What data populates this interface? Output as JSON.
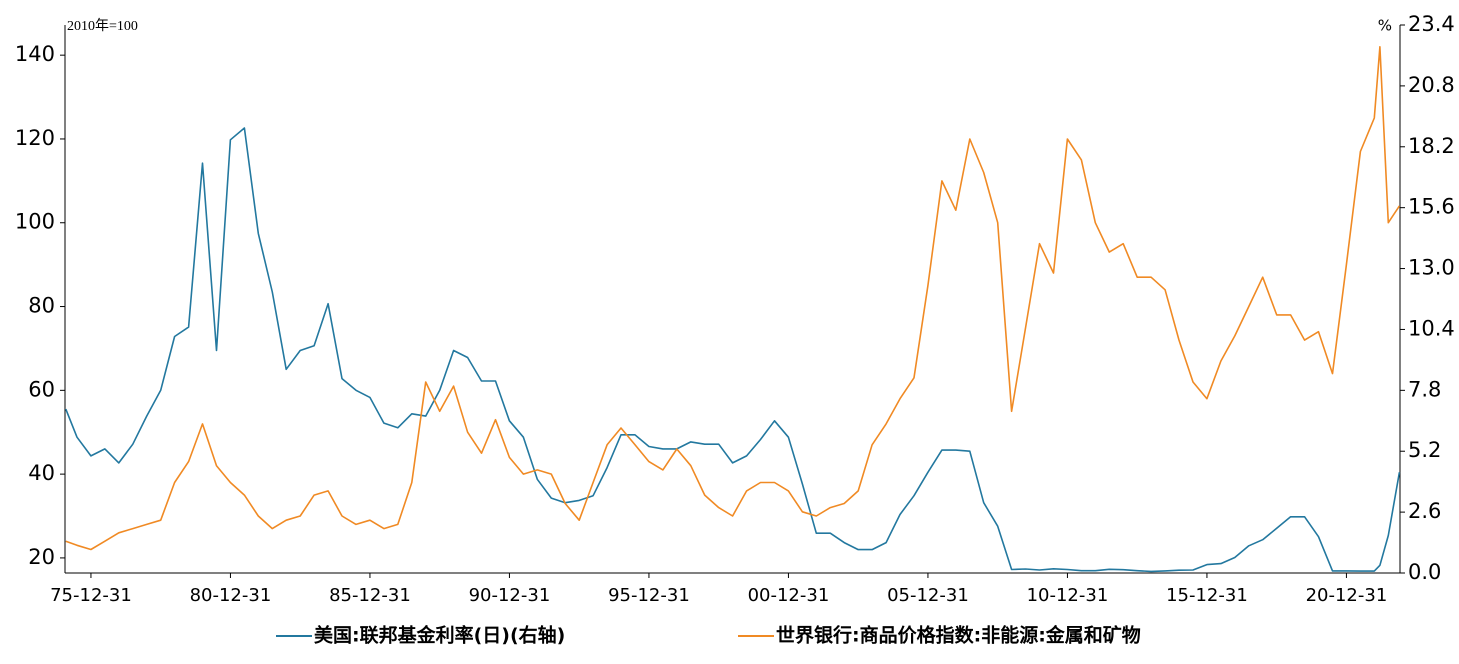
{
  "chart_data": {
    "type": "line",
    "y_label": "2010年=100",
    "y2_label": "%",
    "x": [
      1975.1,
      1975.5,
      1976,
      1976.5,
      1977,
      1977.5,
      1978,
      1978.5,
      1979,
      1979.5,
      1980,
      1980.5,
      1981,
      1981.5,
      1982,
      1982.5,
      1983,
      1983.5,
      1984,
      1984.5,
      1985,
      1985.5,
      1986,
      1986.5,
      1987,
      1987.5,
      1988,
      1988.5,
      1989,
      1989.5,
      1990,
      1990.5,
      1991,
      1991.5,
      1992,
      1992.5,
      1993,
      1993.5,
      1994,
      1994.5,
      1995,
      1995.5,
      1996,
      1996.5,
      1997,
      1997.5,
      1998,
      1998.5,
      1999,
      1999.5,
      2000,
      2000.5,
      2001,
      2001.5,
      2002,
      2002.5,
      2003,
      2003.5,
      2004,
      2004.5,
      2005,
      2005.5,
      2006,
      2006.5,
      2007,
      2007.5,
      2008,
      2008.5,
      2009,
      2009.5,
      2010,
      2010.5,
      2011,
      2011.5,
      2012,
      2012.5,
      2013,
      2013.5,
      2014,
      2014.5,
      2015,
      2015.5,
      2016,
      2016.5,
      2017,
      2017.5,
      2018,
      2018.5,
      2019,
      2019.5,
      2020,
      2020.5,
      2021,
      2021.5,
      2022,
      2022.2,
      2022.5,
      2022.9
    ],
    "series": [
      {
        "name": "美国:联邦基金利率(日)(右轴)",
        "color": "#23789f",
        "axis": "y2",
        "values": [
          7.0,
          5.8,
          5.0,
          5.3,
          4.7,
          5.5,
          6.7,
          7.8,
          10.1,
          10.5,
          17.5,
          9.5,
          18.5,
          19.0,
          14.5,
          12.0,
          8.7,
          9.5,
          9.7,
          11.5,
          8.3,
          7.8,
          7.5,
          6.4,
          6.2,
          6.8,
          6.7,
          7.8,
          9.5,
          9.2,
          8.2,
          8.2,
          6.5,
          5.8,
          4.0,
          3.2,
          3.0,
          3.1,
          3.3,
          4.5,
          5.9,
          5.9,
          5.4,
          5.3,
          5.3,
          5.6,
          5.5,
          5.5,
          4.7,
          5.0,
          5.7,
          6.5,
          5.8,
          3.8,
          1.7,
          1.7,
          1.3,
          1.0,
          1.0,
          1.3,
          2.5,
          3.3,
          4.3,
          5.25,
          5.25,
          5.2,
          3.0,
          2.0,
          0.15,
          0.17,
          0.13,
          0.18,
          0.15,
          0.1,
          0.1,
          0.16,
          0.14,
          0.1,
          0.07,
          0.09,
          0.12,
          0.13,
          0.36,
          0.4,
          0.66,
          1.16,
          1.42,
          1.91,
          2.4,
          2.4,
          1.55,
          0.09,
          0.09,
          0.08,
          0.08,
          0.33,
          1.6,
          4.3
        ]
      },
      {
        "name": "世界银行:商品价格指数:非能源:金属和矿物",
        "color": "#f08a24",
        "axis": "y",
        "values": [
          24,
          23,
          22,
          24,
          26,
          27,
          28,
          29,
          38,
          43,
          52,
          42,
          38,
          35,
          30,
          27,
          29,
          30,
          35,
          36,
          30,
          28,
          29,
          27,
          28,
          38,
          62,
          55,
          61,
          50,
          45,
          53,
          44,
          40,
          41,
          40,
          33,
          29,
          38,
          47,
          51,
          47,
          43,
          41,
          46,
          42,
          35,
          32,
          30,
          36,
          38,
          38,
          36,
          31,
          30,
          32,
          33,
          36,
          47,
          52,
          58,
          63,
          85,
          110,
          103,
          120,
          112,
          100,
          55,
          75,
          95,
          88,
          120,
          115,
          100,
          93,
          95,
          87,
          87,
          84,
          72,
          62,
          58,
          67,
          73,
          80,
          87,
          78,
          78,
          72,
          74,
          64,
          90,
          117,
          125,
          142,
          100,
          104
        ]
      }
    ],
    "xlim": [
      1975.07,
      2022.92
    ],
    "xticks": [
      {
        "value": 1976,
        "label": "75-12-31"
      },
      {
        "value": 1981,
        "label": "80-12-31"
      },
      {
        "value": 1986,
        "label": "85-12-31"
      },
      {
        "value": 1991,
        "label": "90-12-31"
      },
      {
        "value": 1996,
        "label": "95-12-31"
      },
      {
        "value": 2001,
        "label": "00-12-31"
      },
      {
        "value": 2006,
        "label": "05-12-31"
      },
      {
        "value": 2011,
        "label": "10-12-31"
      },
      {
        "value": 2016,
        "label": "15-12-31"
      },
      {
        "value": 2021,
        "label": "20-12-31"
      }
    ],
    "ylim": [
      16.4,
      147.2
    ],
    "yticks": [
      20,
      40,
      60,
      80,
      100,
      120,
      140
    ],
    "y2lim": [
      0,
      23.4
    ],
    "y2ticks": [
      {
        "value": 0,
        "label": "0.0"
      },
      2.6,
      5.2,
      7.8,
      10.4,
      {
        "value": 13,
        "label": "13.0"
      },
      15.6,
      18.2,
      20.8,
      23.4
    ],
    "grid": false,
    "legend": "bottom"
  }
}
